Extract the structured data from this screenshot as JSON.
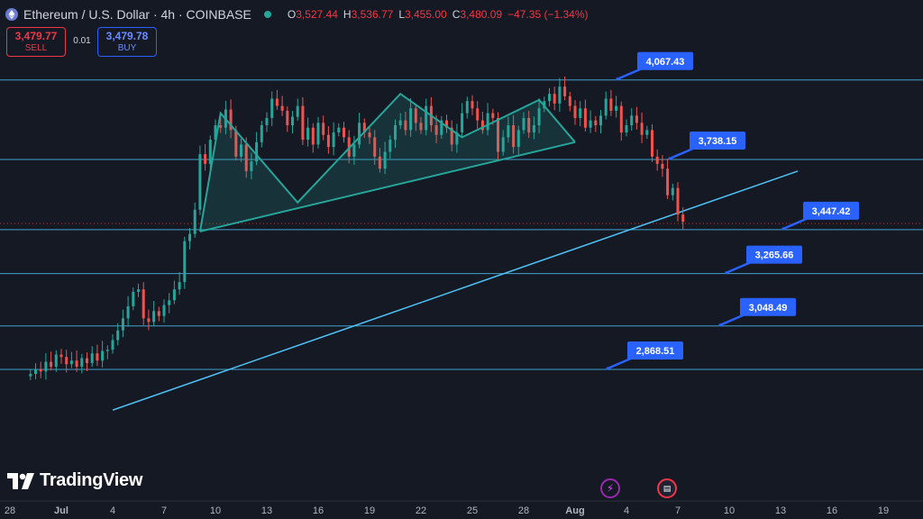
{
  "header": {
    "title": "Ethereum / U.S. Dollar · 4h · COINBASE",
    "open_label": "O",
    "open": "3,527.44",
    "high_label": "H",
    "high": "3,536.77",
    "low_label": "L",
    "low": "3,455.00",
    "close_label": "C",
    "close": "3,480.09",
    "change": "−47.35 (−1.34%)"
  },
  "trade": {
    "sell_price": "3,479.77",
    "sell_label": "SELL",
    "spread": "0.01",
    "buy_price": "3,479.78",
    "buy_label": "BUY"
  },
  "brand": {
    "name": "TradingView"
  },
  "colors": {
    "background": "#151924",
    "up": "#26a69a",
    "down": "#ef5350",
    "level_line": "#4fc3f7",
    "label": "#2962ff",
    "pattern": "#26a69a"
  },
  "icons": [
    "ethereum-icon",
    "market-status-dot-icon",
    "tradingview-logo-icon",
    "lightning-event-icon",
    "us-flag-event-icon"
  ],
  "chart_data": {
    "type": "candlestick",
    "timeframe": "4h",
    "ylim": [
      2700,
      4250
    ],
    "x_ticks": [
      "28",
      "Jul",
      "4",
      "7",
      "10",
      "13",
      "16",
      "19",
      "22",
      "25",
      "28",
      "Aug",
      "4",
      "7",
      "10",
      "13",
      "16",
      "19"
    ],
    "levels": [
      {
        "value": 4067.43,
        "label": "4,067.43"
      },
      {
        "value": 3738.15,
        "label": "3,738.15"
      },
      {
        "value": 3447.42,
        "label": "3,447.42"
      },
      {
        "value": 3265.66,
        "label": "3,265.66"
      },
      {
        "value": 3048.49,
        "label": "3,048.49"
      },
      {
        "value": 2868.51,
        "label": "2,868.51"
      }
    ],
    "close_series": [
      2850,
      2870,
      2860,
      2900,
      2880,
      2930,
      2920,
      2890,
      2905,
      2880,
      2915,
      2895,
      2935,
      2905,
      2945,
      2950,
      2990,
      3030,
      3080,
      3130,
      3190,
      3200,
      3080,
      3065,
      3110,
      3090,
      3135,
      3155,
      3200,
      3230,
      3400,
      3430,
      3530,
      3760,
      3720,
      3820,
      3880,
      3870,
      3945,
      3860,
      3750,
      3800,
      3690,
      3730,
      3810,
      3880,
      3910,
      3990,
      3960,
      3940,
      3880,
      3915,
      3960,
      3820,
      3870,
      3800,
      3890,
      3840,
      3790,
      3850,
      3870,
      3830,
      3750,
      3800,
      3890,
      3850,
      3830,
      3750,
      3700,
      3770,
      3820,
      3880,
      3900,
      3860,
      3950,
      3890,
      3860,
      3960,
      3880,
      3840,
      3900,
      3870,
      3800,
      3850,
      3930,
      3980,
      3950,
      3900,
      3860,
      3930,
      3910,
      3770,
      3830,
      3880,
      3790,
      3860,
      3910,
      3850,
      3880,
      3950,
      3980,
      4010,
      3970,
      4040,
      4000,
      3960,
      3910,
      3950,
      3870,
      3900,
      3880,
      3920,
      3990,
      3940,
      3960,
      3850,
      3880,
      3920,
      3890,
      3840,
      3860,
      3750,
      3720,
      3700,
      3590,
      3620,
      3510,
      3480
    ],
    "x_start_date": "2024-06-26",
    "trendline": [
      {
        "date": "2024-07-04",
        "value": 2700
      },
      {
        "date": "2024-08-13",
        "value": 3690
      }
    ]
  }
}
